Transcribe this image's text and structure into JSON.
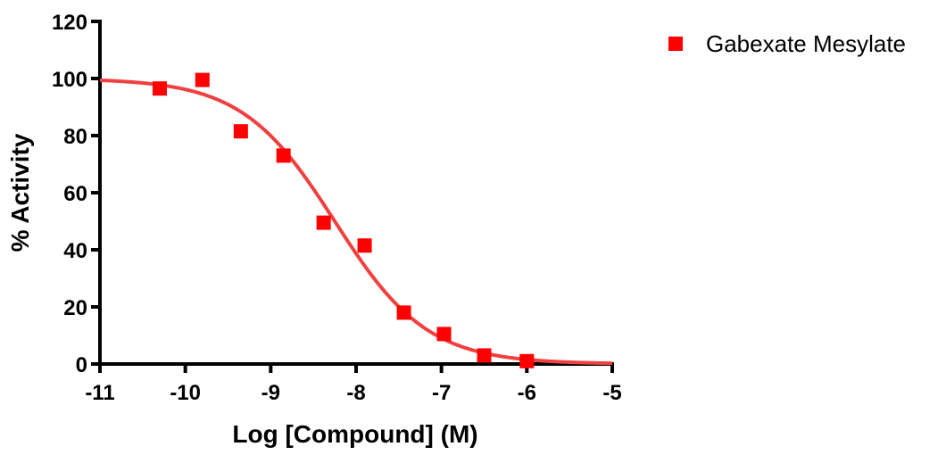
{
  "chart_data": {
    "type": "scatter",
    "title": "",
    "xlabel": "Log [Compound] (M)",
    "ylabel": "% Activity",
    "xlim": [
      -11,
      -5
    ],
    "ylim": [
      0,
      120
    ],
    "x_ticks": [
      -11,
      -10,
      -9,
      -8,
      -7,
      -6,
      -5
    ],
    "x_tick_labels": [
      "-11",
      "-10",
      "-9",
      "-8",
      "-7",
      "-6",
      "-5"
    ],
    "y_ticks": [
      0,
      20,
      40,
      60,
      80,
      100,
      120
    ],
    "y_tick_labels": [
      "0",
      "20",
      "40",
      "60",
      "80",
      "100",
      "120"
    ],
    "grid": false,
    "legend_position": "top-right",
    "series": [
      {
        "name": "Gabexate Mesylate",
        "color": "#ff0000",
        "marker": "square",
        "x": [
          -10.3,
          -9.8,
          -9.35,
          -8.85,
          -8.38,
          -7.9,
          -7.44,
          -6.97,
          -6.5,
          -6.0
        ],
        "y": [
          96.5,
          99.5,
          81.5,
          73.0,
          49.5,
          41.5,
          18.0,
          10.5,
          3.0,
          1.0
        ]
      }
    ],
    "fit_curve": {
      "type": "sigmoidal dose-response",
      "color": "#f04040",
      "top": 100,
      "bottom": 0,
      "log_ic50": -8.25,
      "hill_slope": -0.8
    }
  }
}
